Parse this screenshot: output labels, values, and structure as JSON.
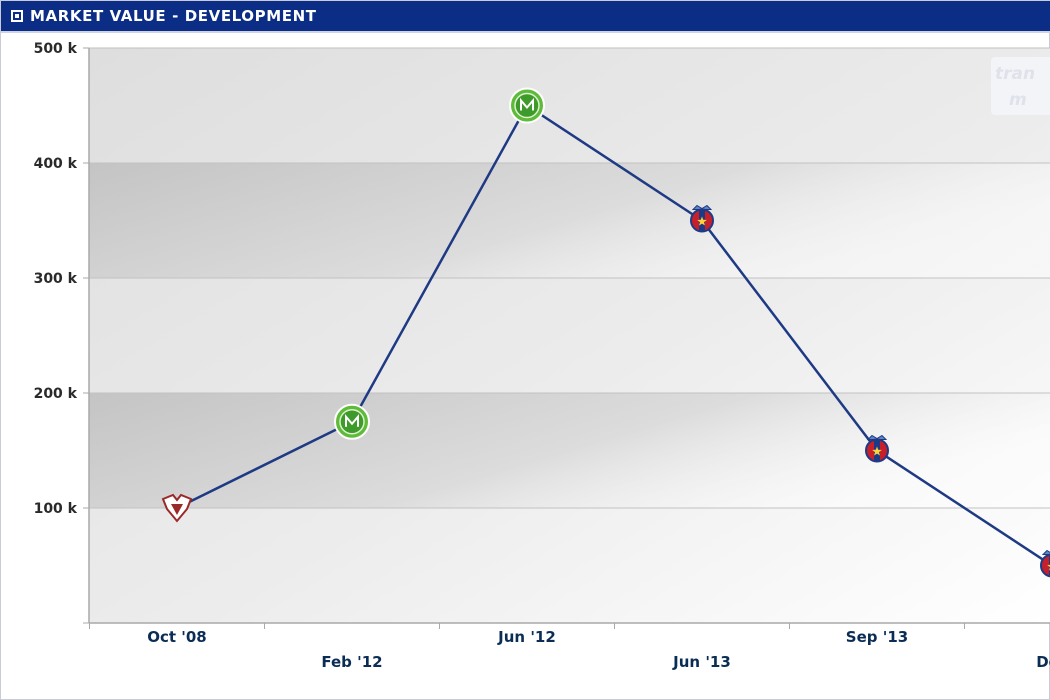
{
  "panel": {
    "title": "MARKET VALUE - DEVELOPMENT"
  },
  "watermark": {
    "line1": "tran",
    "line2": "m"
  },
  "chart_data": {
    "type": "line",
    "title": "MARKET VALUE - DEVELOPMENT",
    "xlabel": "",
    "ylabel": "",
    "ylim": [
      0,
      500000
    ],
    "y_ticks": [
      {
        "value": 100000,
        "label": "100 k"
      },
      {
        "value": 200000,
        "label": "200 k"
      },
      {
        "value": 300000,
        "label": "300 k"
      },
      {
        "value": 400000,
        "label": "400 k"
      },
      {
        "value": 500000,
        "label": "500 k"
      }
    ],
    "grid": true,
    "line_color": "#1f3a84",
    "series": [
      {
        "points": [
          {
            "label": "Oct '08",
            "value": 100000,
            "club_badge": "red-white-shield-badge"
          },
          {
            "label": "Feb '12",
            "value": 175000,
            "club_badge": "green-round-badge"
          },
          {
            "label": "Jun '12",
            "value": 450000,
            "club_badge": "green-round-badge"
          },
          {
            "label": "Jun '13",
            "value": 350000,
            "club_badge": "red-blue-star-crest-badge"
          },
          {
            "label": "Sep '13",
            "value": 150000,
            "club_badge": "red-blue-star-crest-badge"
          },
          {
            "label": "Dec",
            "value": 50000,
            "club_badge": "red-blue-star-crest-badge"
          }
        ]
      }
    ]
  }
}
